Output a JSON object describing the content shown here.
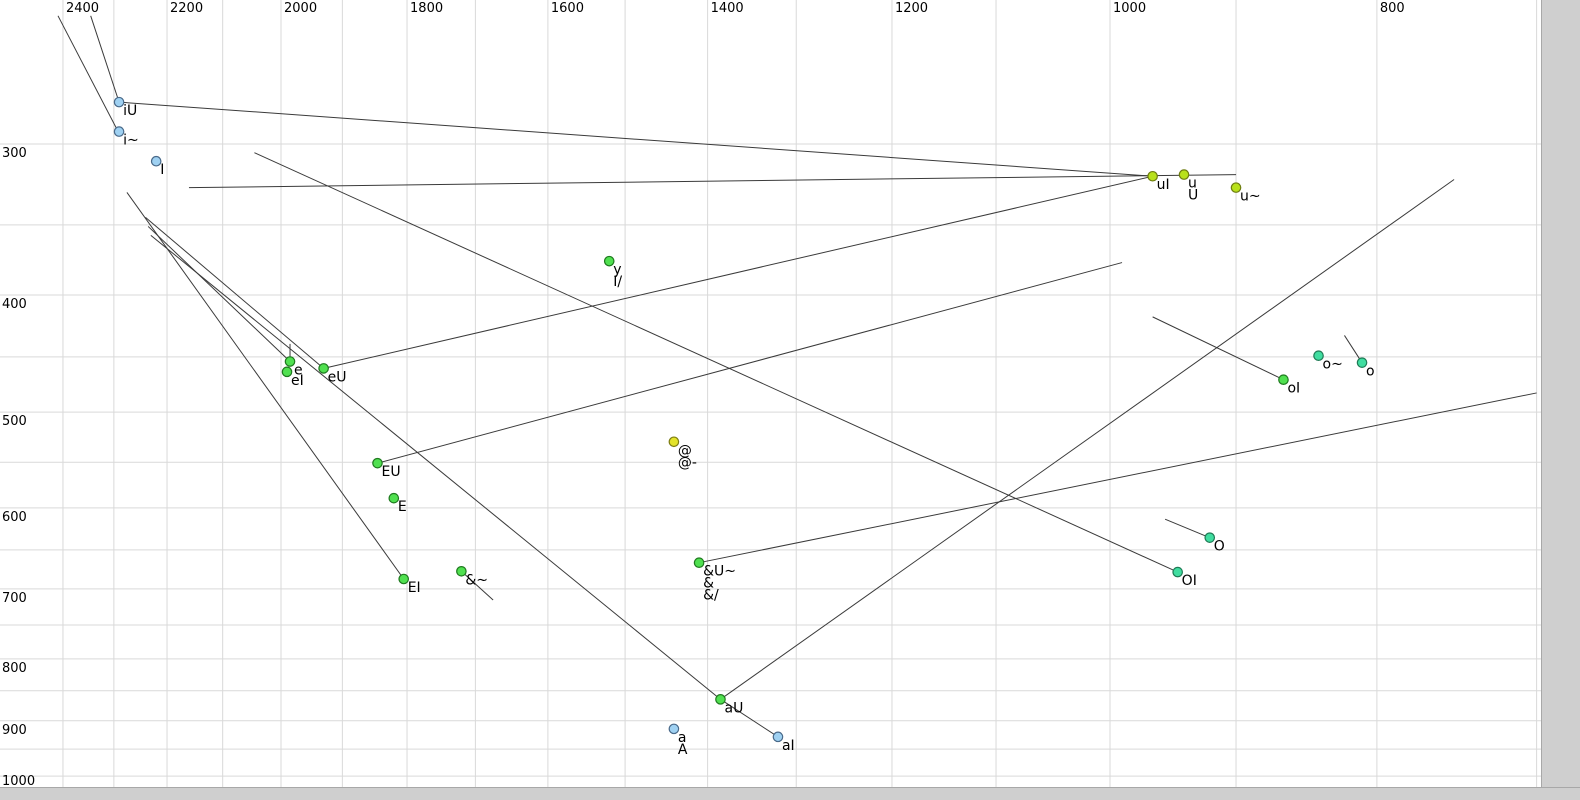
{
  "window": {
    "kind": "formant-plot-canvas"
  },
  "chart_data": {
    "type": "scatter",
    "title": "",
    "x_axis": {
      "position": "top",
      "scale": "log",
      "direction": "reversed",
      "major_ticks": [
        2400,
        2200,
        2000,
        1800,
        1600,
        1400,
        1200,
        1000,
        800
      ],
      "tick_labels": [
        "2400",
        "2200",
        "2000",
        "1800",
        "1600",
        "1400",
        "1200",
        "1000",
        "800"
      ],
      "minor_ticks": [
        2300,
        2100,
        1900,
        1700,
        1500,
        1300,
        1100,
        900,
        700
      ],
      "range": [
        2530,
        698
      ]
    },
    "y_axis": {
      "position": "left",
      "scale": "log",
      "direction": "down",
      "major_ticks": [
        300,
        400,
        500,
        600,
        700,
        800,
        900,
        1000
      ],
      "tick_labels": [
        "300",
        "400",
        "500",
        "600",
        "700",
        "800",
        "900",
        "1000"
      ],
      "minor_ticks": [
        350,
        450,
        550,
        650,
        750,
        850,
        950
      ],
      "range": [
        228,
        1023
      ]
    },
    "palette": {
      "blue": {
        "fill": "#9fd1f2",
        "stroke": "#4a6a8a"
      },
      "green": {
        "fill": "#50e050",
        "stroke": "#1f7a1f"
      },
      "teal": {
        "fill": "#40dda0",
        "stroke": "#1f7a55"
      },
      "yellowgreen": {
        "fill": "#b8e11c",
        "stroke": "#6e7d10"
      },
      "yellow": {
        "fill": "#e3e32a",
        "stroke": "#7d7d14"
      }
    },
    "grid": {
      "on": true,
      "color": "#d9d9d9"
    },
    "trajectory_color": "#3a3a3a",
    "points": [
      {
        "labels": [
          "iU"
        ],
        "f2": 2290,
        "f1": 277,
        "color": "blue"
      },
      {
        "labels": [
          "i~"
        ],
        "f2": 2290,
        "f1": 293,
        "color": "blue"
      },
      {
        "labels": [
          "I"
        ],
        "f2": 2220,
        "f1": 310,
        "color": "blue"
      },
      {
        "labels": [
          "y",
          "I/"
        ],
        "f2": 1520,
        "f1": 375,
        "color": "green"
      },
      {
        "labels": [
          "e"
        ],
        "f2": 1985,
        "f1": 454,
        "color": "green"
      },
      {
        "labels": [
          "eI"
        ],
        "f2": 1990,
        "f1": 463,
        "color": "green"
      },
      {
        "labels": [
          "eU"
        ],
        "f2": 1930,
        "f1": 460,
        "color": "green"
      },
      {
        "labels": [
          "EU"
        ],
        "f2": 1845,
        "f1": 551,
        "color": "green"
      },
      {
        "labels": [
          "E"
        ],
        "f2": 1820,
        "f1": 589,
        "color": "green"
      },
      {
        "labels": [
          "EI"
        ],
        "f2": 1805,
        "f1": 687,
        "color": "green"
      },
      {
        "labels": [
          "&~"
        ],
        "f2": 1720,
        "f1": 677,
        "color": "green"
      },
      {
        "labels": [
          "@",
          "@-"
        ],
        "f2": 1440,
        "f1": 529,
        "color": "yellow"
      },
      {
        "labels": [
          "&U~",
          "&",
          "&/"
        ],
        "f2": 1410,
        "f1": 666,
        "color": "green"
      },
      {
        "labels": [
          "aU"
        ],
        "f2": 1385,
        "f1": 864,
        "color": "green"
      },
      {
        "labels": [
          "a",
          "A"
        ],
        "f2": 1440,
        "f1": 914,
        "color": "blue"
      },
      {
        "labels": [
          "aI"
        ],
        "f2": 1320,
        "f1": 928,
        "color": "blue"
      },
      {
        "labels": [
          "uI"
        ],
        "f2": 965,
        "f1": 319,
        "color": "yellowgreen"
      },
      {
        "labels": [
          "u",
          "U"
        ],
        "f2": 940,
        "f1": 318,
        "color": "yellowgreen"
      },
      {
        "labels": [
          "u~"
        ],
        "f2": 900,
        "f1": 326,
        "color": "yellowgreen"
      },
      {
        "labels": [
          "o~"
        ],
        "f2": 840,
        "f1": 449,
        "color": "teal"
      },
      {
        "labels": [
          "o"
        ],
        "f2": 810,
        "f1": 455,
        "color": "teal"
      },
      {
        "labels": [
          "oI"
        ],
        "f2": 865,
        "f1": 470,
        "color": "green"
      },
      {
        "labels": [
          "O"
        ],
        "f2": 920,
        "f1": 635,
        "color": "teal"
      },
      {
        "labels": [
          "OI"
        ],
        "f2": 945,
        "f1": 678,
        "color": "teal"
      }
    ],
    "trajectories": [
      {
        "name": "into-i~",
        "from": [
          2410,
          235
        ],
        "to": [
          2290,
          294
        ]
      },
      {
        "name": "into-iU",
        "from": [
          2345,
          235
        ],
        "to": [
          2290,
          277
        ]
      },
      {
        "name": "iU-to-uI",
        "from": [
          2290,
          277
        ],
        "to": [
          965,
          319
        ]
      },
      {
        "name": "I-to-u",
        "from": [
          2160,
          326
        ],
        "to": [
          900,
          318
        ]
      },
      {
        "name": "into-OI",
        "from": [
          2045,
          305
        ],
        "to": [
          945,
          678
        ]
      },
      {
        "name": "eU-to-uI",
        "from": [
          1930,
          460
        ],
        "to": [
          965,
          319
        ]
      },
      {
        "name": "EU-glide",
        "from": [
          1845,
          551
        ],
        "to": [
          990,
          376
        ]
      },
      {
        "name": "into-EI",
        "from": [
          2275,
          329
        ],
        "to": [
          1805,
          687
        ]
      },
      {
        "name": "into-eU",
        "from": [
          2240,
          345
        ],
        "to": [
          1930,
          460
        ]
      },
      {
        "name": "into-e",
        "from": [
          2235,
          351
        ],
        "to": [
          1985,
          454
        ]
      },
      {
        "name": "into-aU",
        "from": [
          2230,
          357
        ],
        "to": [
          1385,
          864
        ]
      },
      {
        "name": "into-aU-2",
        "from": [
          750,
          321
        ],
        "to": [
          1385,
          864
        ]
      },
      {
        "name": "aU-to-aI",
        "from": [
          1385,
          864
        ],
        "to": [
          1320,
          928
        ]
      },
      {
        "name": "into-o",
        "from": [
          822,
          432
        ],
        "to": [
          810,
          455
        ]
      },
      {
        "name": "into-O",
        "from": [
          955,
          613
        ],
        "to": [
          920,
          635
        ]
      },
      {
        "name": "&~-glide",
        "from": [
          1720,
          677
        ],
        "to": [
          1675,
          715
        ]
      },
      {
        "name": "&U~-glide",
        "from": [
          1410,
          666
        ],
        "to": [
          700,
          482
        ]
      },
      {
        "name": "into-oI",
        "from": [
          965,
          417
        ],
        "to": [
          865,
          470
        ]
      },
      {
        "name": "e-stub",
        "from": [
          1985,
          439
        ],
        "to": [
          1985,
          454
        ]
      }
    ]
  }
}
